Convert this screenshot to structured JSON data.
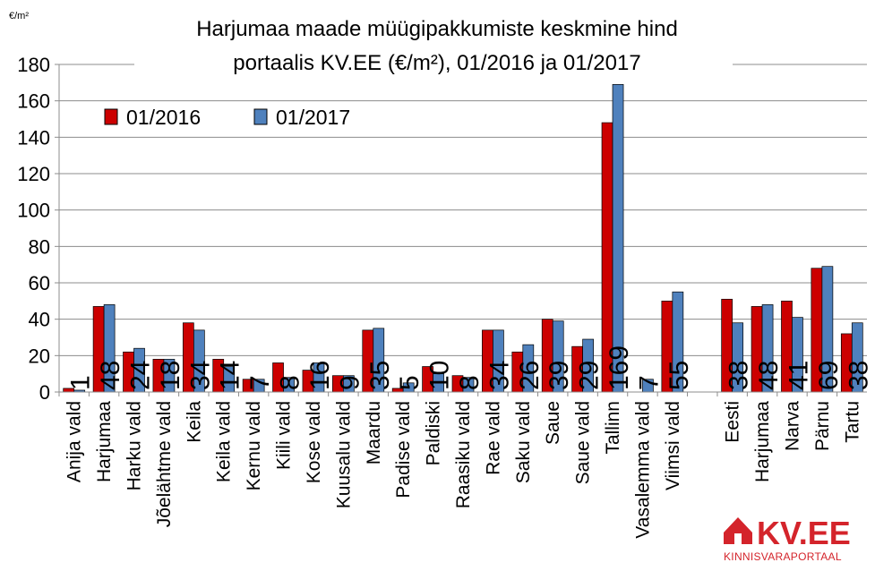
{
  "chart_data": {
    "type": "bar",
    "title_line1": "Harjumaa maade müügipakkumiste keskmine hind",
    "title_line2": "portaalis KV.EE (€/m²), 01/2016 ja 01/2017",
    "unit_label": "€/m²",
    "ylim": [
      0,
      180
    ],
    "yticks": [
      0,
      20,
      40,
      60,
      80,
      100,
      120,
      140,
      160,
      180
    ],
    "grid": true,
    "legend_position": "top-left",
    "colors": {
      "series_2016": "#cc0000",
      "series_2017": "#4f81bd"
    },
    "categories": [
      "Anija vald",
      "Harjumaa",
      "Harku vald",
      "Jõelähtme vald",
      "Keila",
      "Keila vald",
      "Kernu vald",
      "Kiili vald",
      "Kose vald",
      "Kuusalu vald",
      "Maardu",
      "Padise vald",
      "Paldiski",
      "Raasiku vald",
      "Rae vald",
      "Saku vald",
      "Saue",
      "Saue vald",
      "Tallinn",
      "Vasalemma vald",
      "Viimsi vald",
      "",
      "Eesti",
      "Harjumaa",
      "Narva",
      "Pärnu",
      "Tartu"
    ],
    "series": [
      {
        "name": "01/2016",
        "values": [
          2,
          47,
          22,
          18,
          38,
          18,
          7,
          16,
          12,
          9,
          34,
          2,
          14,
          9,
          34,
          22,
          40,
          25,
          148,
          null,
          50,
          null,
          51,
          47,
          50,
          68,
          32
        ]
      },
      {
        "name": "01/2017",
        "values": [
          1,
          48,
          24,
          18,
          34,
          14,
          7,
          8,
          16,
          9,
          35,
          5,
          10,
          8,
          34,
          26,
          39,
          29,
          169,
          7,
          55,
          null,
          38,
          48,
          41,
          69,
          38
        ]
      }
    ],
    "data_labels": [
      "1",
      "48",
      "24",
      "18",
      "34",
      "14",
      "7",
      "8",
      "16",
      "9",
      "35",
      "5",
      "10",
      "8",
      "34",
      "26",
      "39",
      "29",
      "169",
      "7",
      "55",
      "",
      "38",
      "48",
      "41",
      "69",
      "38"
    ]
  },
  "logo": {
    "text": "KV.EE",
    "subtext": "KINNISVARAPORTAAL",
    "icon": "house-icon",
    "color": "#d4242b"
  }
}
